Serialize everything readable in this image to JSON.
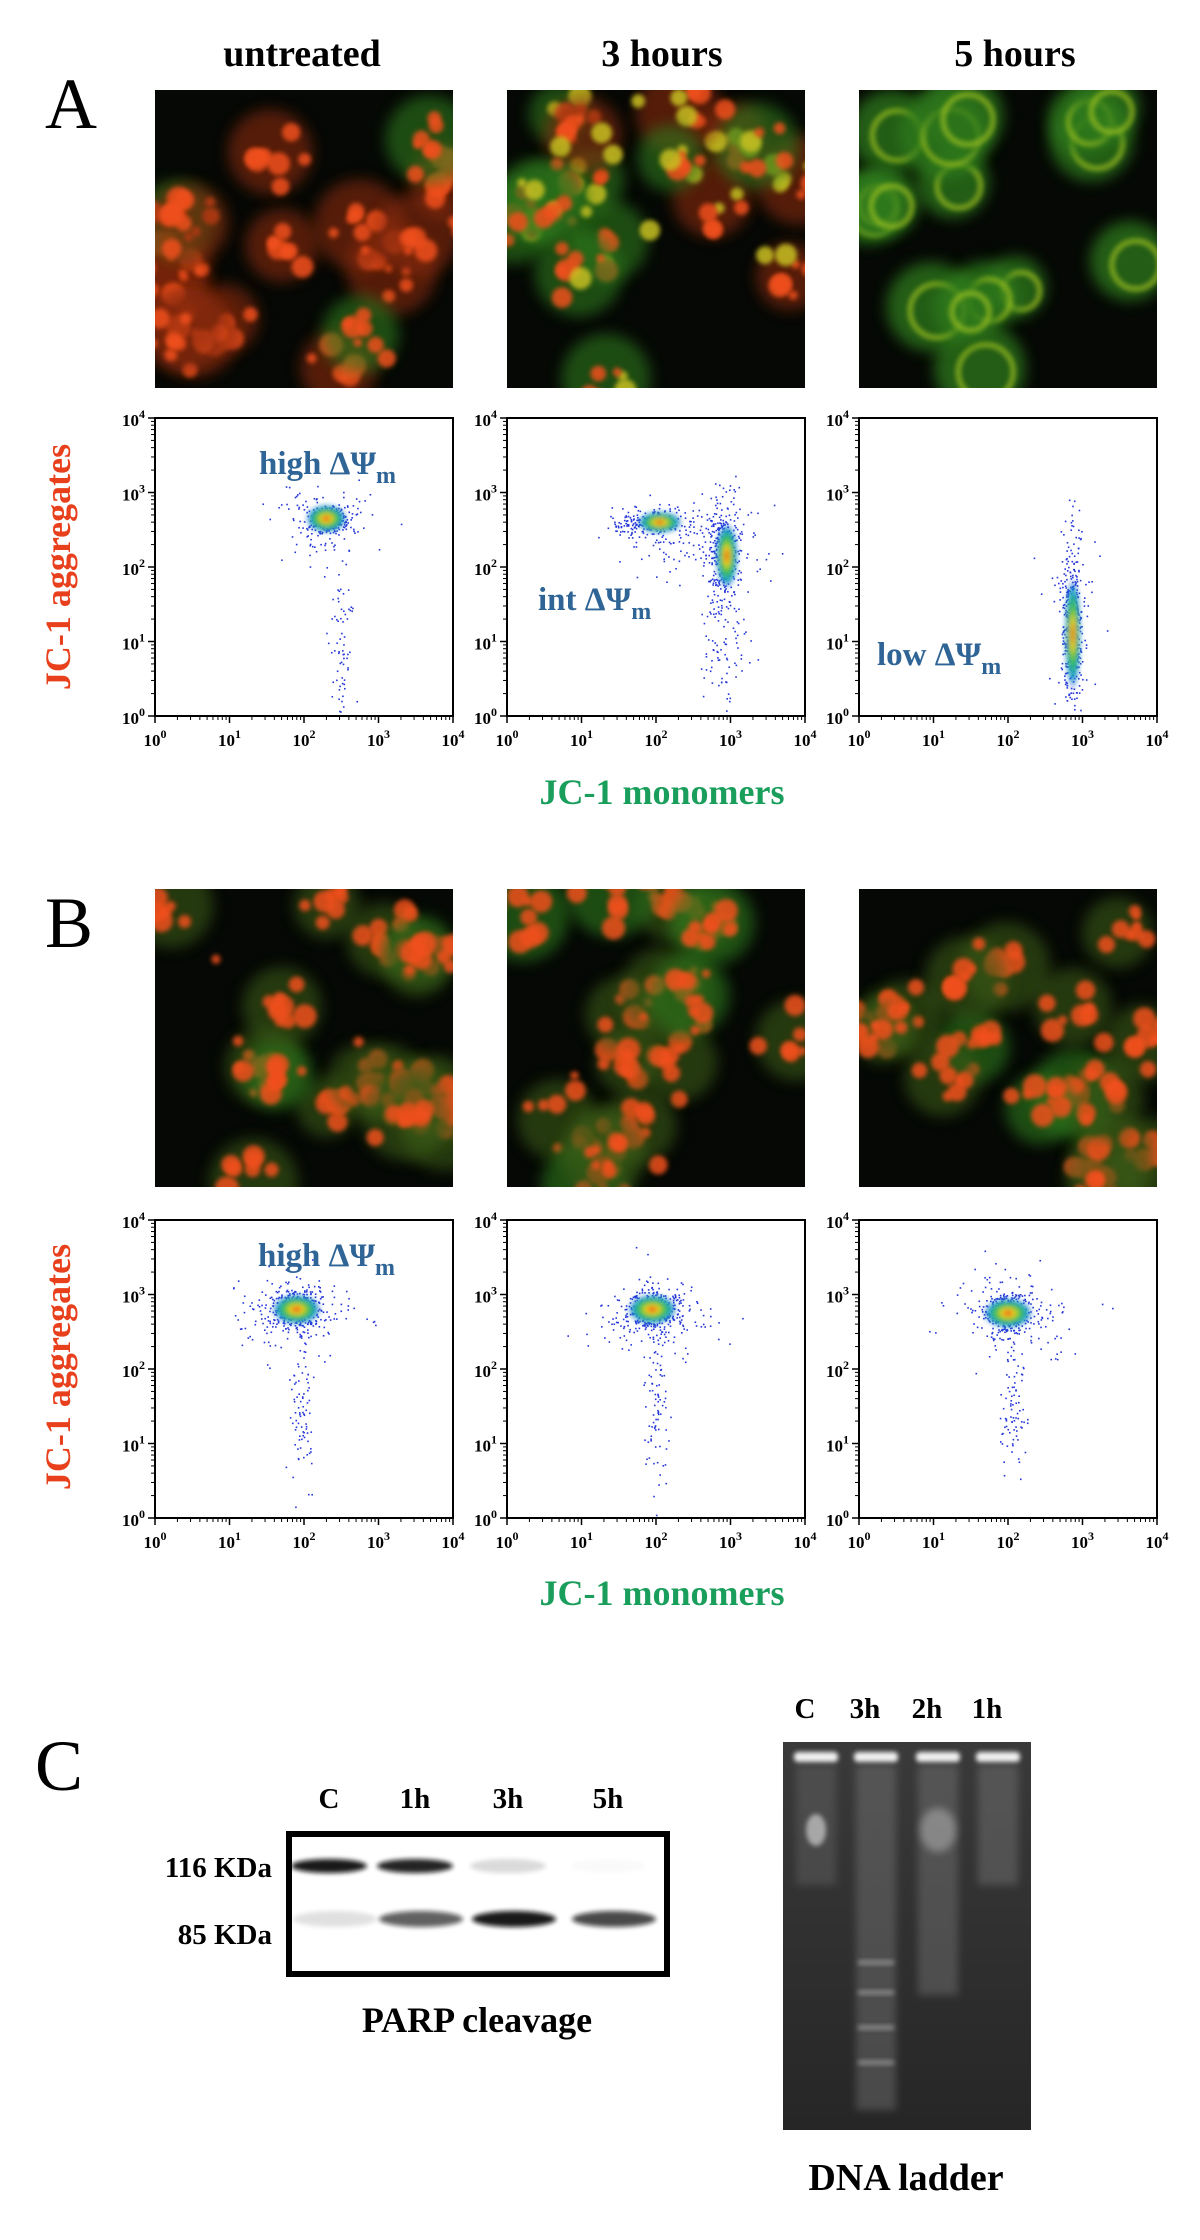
{
  "panel_labels": [
    "A",
    "B",
    "C"
  ],
  "column_headers": [
    "untreated",
    "3 hours",
    "5 hours"
  ],
  "flow": {
    "y_label": "JC-1 aggregates",
    "x_label": "JC-1 monomers",
    "tick_base": "10",
    "tick_exponents": [
      "0",
      "1",
      "2",
      "3",
      "4"
    ]
  },
  "annotations_A": [
    {
      "text": "high ΔΨ",
      "sub": "m"
    },
    {
      "text": "int ΔΨ",
      "sub": "m"
    },
    {
      "text": "low ΔΨ",
      "sub": "m"
    }
  ],
  "annotation_B": {
    "text": "high ΔΨ",
    "sub": "m"
  },
  "western_blot": {
    "lanes": [
      "C",
      "1h",
      "3h",
      "5h"
    ],
    "markers": [
      "116 KDa",
      "85 KDa"
    ],
    "caption": "PARP cleavage"
  },
  "dna_gel": {
    "lanes": [
      "C",
      "3h",
      "2h",
      "1h"
    ],
    "caption": "DNA ladder"
  }
}
